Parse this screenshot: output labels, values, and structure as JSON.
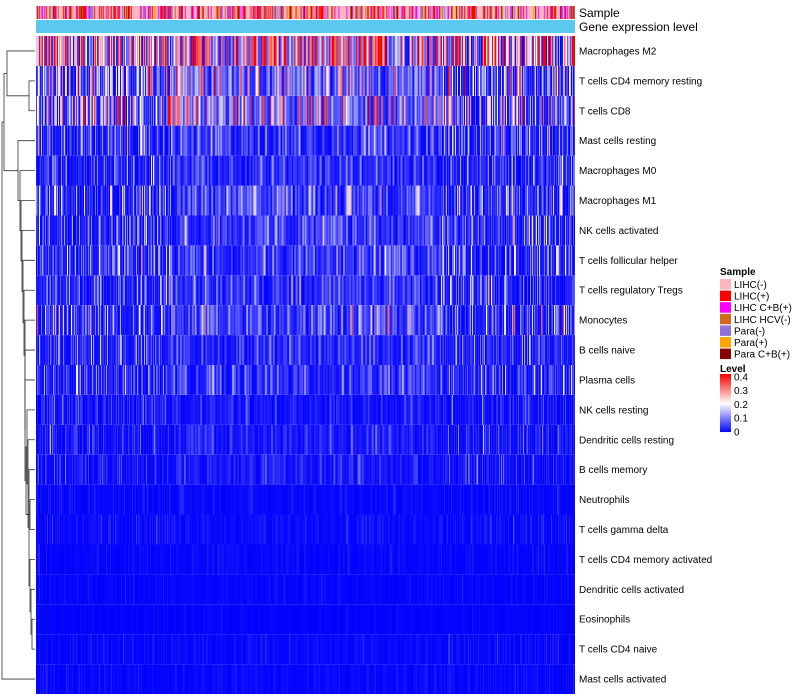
{
  "chart_data": {
    "type": "heatmap",
    "title": "",
    "annotation_tracks": [
      {
        "name": "Sample",
        "label": "Sample"
      },
      {
        "name": "Gene expression level",
        "label": "Gene expression level",
        "color": "#5bc8ef"
      }
    ],
    "rows": [
      {
        "name": "Macrophages M2",
        "mean": 0.25
      },
      {
        "name": "T cells CD4 memory resting",
        "mean": 0.1
      },
      {
        "name": "T cells CD8",
        "mean": 0.12
      },
      {
        "name": "Mast cells resting",
        "mean": 0.05
      },
      {
        "name": "Macrophages M0",
        "mean": 0.04
      },
      {
        "name": "Macrophages M1",
        "mean": 0.06
      },
      {
        "name": "NK cells activated",
        "mean": 0.05
      },
      {
        "name": "T cells follicular helper",
        "mean": 0.05
      },
      {
        "name": "T cells regulatory  Tregs",
        "mean": 0.045
      },
      {
        "name": "Monocytes",
        "mean": 0.06
      },
      {
        "name": "B cells naive",
        "mean": 0.04
      },
      {
        "name": "Plasma cells",
        "mean": 0.04
      },
      {
        "name": "NK cells resting",
        "mean": 0.02
      },
      {
        "name": "Dendritic cells resting",
        "mean": 0.025
      },
      {
        "name": "B cells memory",
        "mean": 0.02
      },
      {
        "name": "Neutrophils",
        "mean": 0.008
      },
      {
        "name": "T cells gamma delta",
        "mean": 0.01
      },
      {
        "name": "T cells CD4 memory activated",
        "mean": 0.006
      },
      {
        "name": "Dendritic cells activated",
        "mean": 0.005
      },
      {
        "name": "Eosinophils",
        "mean": 0.003
      },
      {
        "name": "T cells CD4 naive",
        "mean": 0.008
      },
      {
        "name": "Mast cells activated",
        "mean": 0.006
      }
    ],
    "n_samples": 540,
    "sample_legend": {
      "title": "Sample",
      "items": [
        {
          "label": "LIHC(-)",
          "color": "#ffb6c1"
        },
        {
          "label": "LIHC(+)",
          "color": "#ff0000"
        },
        {
          "label": "LIHC C+B(+)",
          "color": "#ff00ff"
        },
        {
          "label": "LIHC HCV(-)",
          "color": "#d2691e"
        },
        {
          "label": "Para(-)",
          "color": "#9370db"
        },
        {
          "label": "Para(+)",
          "color": "#ffa500"
        },
        {
          "label": "Para C+B(+)",
          "color": "#8b0000"
        }
      ]
    },
    "level_legend": {
      "title": "Level",
      "ticks": [
        {
          "value": 0.4,
          "label": "0.4"
        },
        {
          "value": 0.3,
          "label": "0.3"
        },
        {
          "value": 0.2,
          "label": "0.2"
        },
        {
          "value": 0.1,
          "label": "0.1"
        },
        {
          "value": 0,
          "label": "0"
        }
      ],
      "range": [
        0,
        0.42
      ],
      "colors": [
        "#0000ff",
        "#ffffff",
        "#ff0000"
      ]
    }
  }
}
